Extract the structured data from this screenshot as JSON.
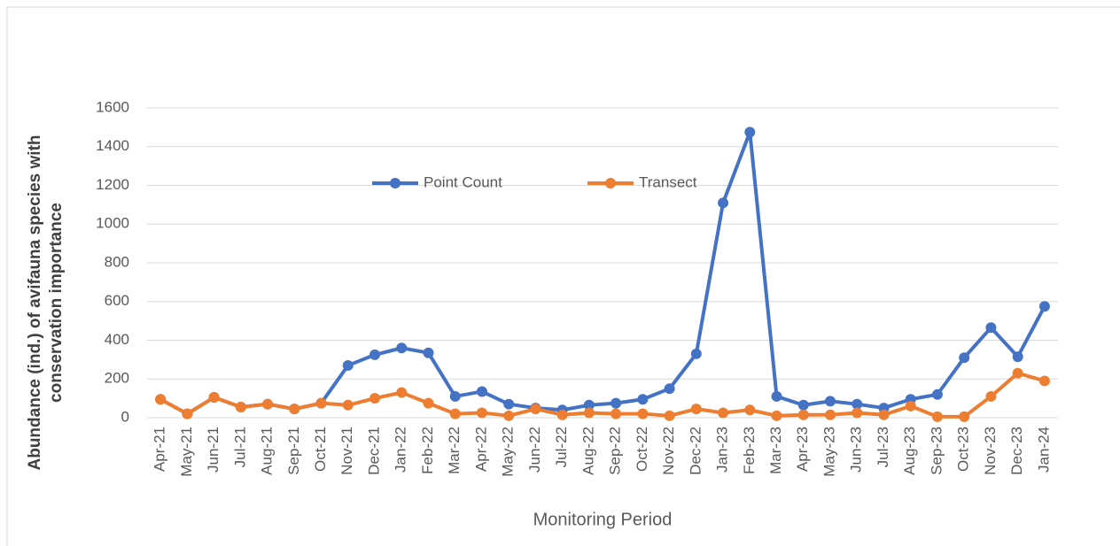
{
  "chart_data": {
    "type": "line",
    "x_label": "Monitoring Period",
    "y_label": "Abundance (ind.) of avifauna species with conservation importance",
    "categories": [
      "Apr-21",
      "May-21",
      "Jun-21",
      "Jul-21",
      "Aug-21",
      "Sep-21",
      "Oct-21",
      "Nov-21",
      "Dec-21",
      "Jan-22",
      "Feb-22",
      "Mar-22",
      "Apr-22",
      "May-22",
      "Jun-22",
      "Jul-22",
      "Aug-22",
      "Sep-22",
      "Oct-22",
      "Nov-22",
      "Dec-22",
      "Jan-23",
      "Feb-23",
      "Mar-23",
      "Apr-23",
      "May-23",
      "Jun-23",
      "Jul-23",
      "Aug-23",
      "Sep-23",
      "Oct-23",
      "Nov-23",
      "Dec-23",
      "Jan-24"
    ],
    "series": [
      {
        "name": "Point Count",
        "color": "#4472c4",
        "values": [
          95,
          20,
          105,
          55,
          70,
          45,
          75,
          270,
          325,
          360,
          335,
          110,
          135,
          70,
          50,
          40,
          65,
          75,
          95,
          150,
          330,
          1110,
          1475,
          110,
          65,
          85,
          70,
          50,
          95,
          120,
          310,
          465,
          315,
          575
        ]
      },
      {
        "name": "Transect",
        "color": "#ed7d31",
        "values": [
          95,
          20,
          105,
          55,
          70,
          45,
          75,
          65,
          100,
          130,
          75,
          20,
          25,
          10,
          45,
          15,
          25,
          20,
          20,
          10,
          45,
          25,
          40,
          10,
          15,
          15,
          25,
          15,
          60,
          5,
          5,
          110,
          230,
          190
        ]
      }
    ],
    "ylim": [
      0,
      1600
    ],
    "yticks": [
      0,
      200,
      400,
      600,
      800,
      1000,
      1200,
      1400,
      1600
    ],
    "grid": true,
    "legend": "top"
  }
}
